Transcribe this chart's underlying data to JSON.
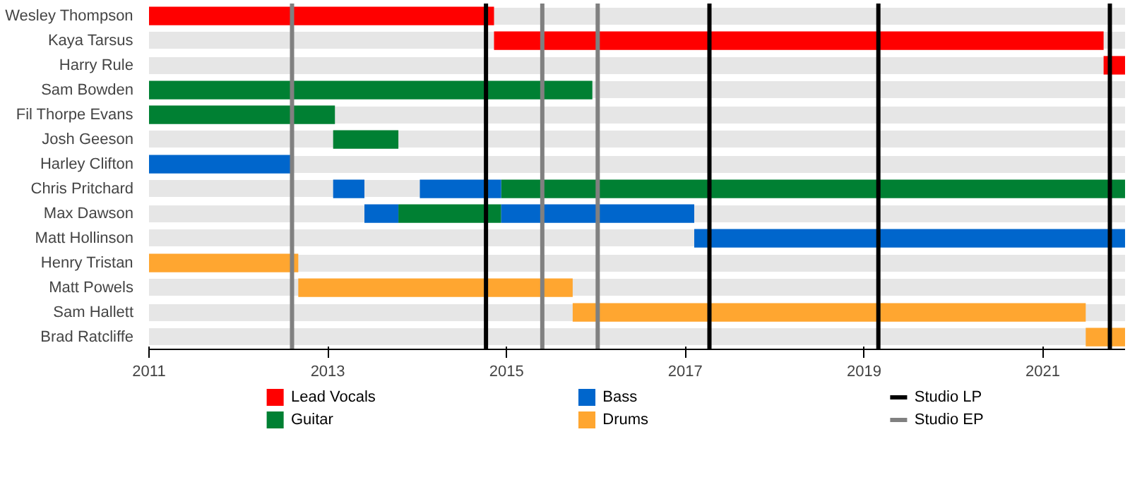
{
  "chart_data": {
    "type": "bar",
    "orientation": "horizontal",
    "categories": [
      "Wesley Thompson",
      "Kaya Tarsus",
      "Harry Rule",
      "Sam Bowden",
      "Fil Thorpe Evans",
      "Josh Geeson",
      "Harley Clifton",
      "Chris Pritchard",
      "Max Dawson",
      "Matt Hollinson",
      "Henry Tristan",
      "Matt Powels",
      "Sam Hallett",
      "Brad Ratcliffe"
    ],
    "series": [
      {
        "name": "Lead Vocals",
        "color": "#ff0000",
        "base": [
          2011,
          2014.86,
          2021.68,
          null,
          null,
          null,
          null,
          null,
          null,
          null,
          null,
          null,
          null,
          null
        ],
        "values": [
          3.86,
          6.82,
          0.24,
          null,
          null,
          null,
          null,
          null,
          null,
          null,
          null,
          null,
          null,
          null
        ]
      },
      {
        "name": "Guitar",
        "color": "#008033",
        "base": [
          null,
          null,
          null,
          2011,
          2011,
          2013.06,
          null,
          2014.94,
          2013.79,
          null,
          null,
          null,
          null,
          null
        ],
        "values": [
          null,
          null,
          null,
          4.96,
          2.08,
          0.73,
          null,
          6.98,
          1.15,
          null,
          null,
          null,
          null,
          null
        ]
      },
      {
        "name": "Bass",
        "color": "#0066cc",
        "base": [
          null,
          null,
          null,
          null,
          null,
          null,
          2011,
          2013.06,
          2013.41,
          2017.1,
          null,
          null,
          null,
          null
        ],
        "values": [
          null,
          null,
          null,
          null,
          null,
          null,
          1.6,
          0.35,
          0.38,
          4.82,
          null,
          null,
          null,
          null
        ]
      },
      {
        "color": "#0066cc",
        "base": [
          null,
          null,
          null,
          null,
          null,
          null,
          null,
          2014.03,
          2014.94,
          null,
          null,
          null,
          null,
          null
        ],
        "values": [
          null,
          null,
          null,
          null,
          null,
          null,
          null,
          0.91,
          2.16,
          null,
          null,
          null,
          null,
          null
        ]
      },
      {
        "name": "Drums",
        "color": "#ffa630",
        "base": [
          null,
          null,
          null,
          null,
          null,
          null,
          null,
          null,
          null,
          null,
          2011,
          2012.67,
          2015.74,
          2021.48
        ],
        "values": [
          null,
          null,
          null,
          null,
          null,
          null,
          null,
          null,
          null,
          null,
          1.67,
          3.07,
          5.74,
          0.44
        ]
      }
    ],
    "xlim": [
      2011,
      2021.92
    ],
    "xticks": [
      2011,
      2013,
      2015,
      2017,
      2019,
      2021
    ],
    "ref_lines": [
      {
        "axis": "x",
        "value": 2014.77,
        "label": "Studio LP",
        "color": "#000000"
      },
      {
        "axis": "x",
        "value": 2017.27,
        "color": "#000000"
      },
      {
        "axis": "x",
        "value": 2019.16,
        "color": "#000000"
      },
      {
        "axis": "x",
        "value": 2021.75,
        "color": "#000000"
      },
      {
        "axis": "x",
        "value": 2012.6,
        "label": "Studio EP",
        "color": "#808080"
      },
      {
        "axis": "x",
        "value": 2015.4,
        "color": "#808080"
      },
      {
        "axis": "x",
        "value": 2016.02,
        "color": "#808080"
      }
    ],
    "grid": "y",
    "legend": "bottom"
  }
}
